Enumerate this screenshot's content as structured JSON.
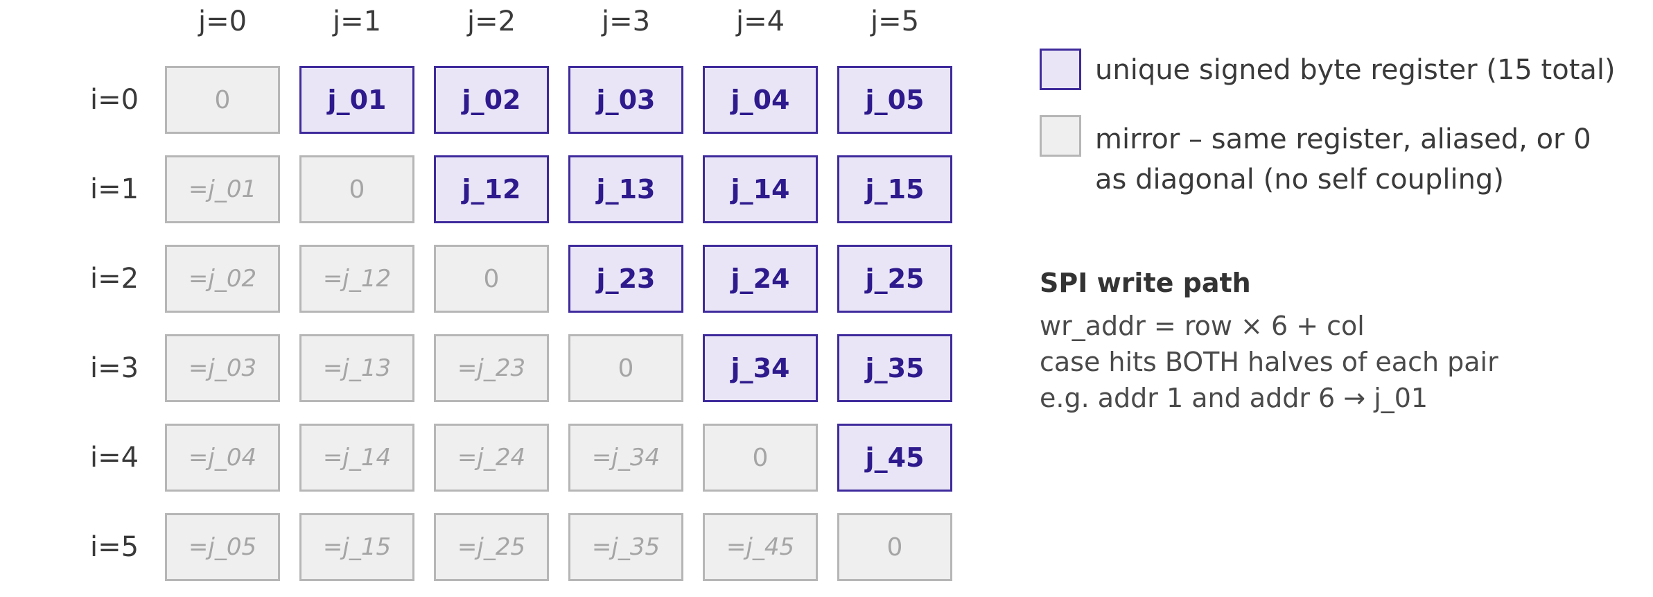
{
  "columns": [
    "j=0",
    "j=1",
    "j=2",
    "j=3",
    "j=4",
    "j=5"
  ],
  "rows": [
    "i=0",
    "i=1",
    "i=2",
    "i=3",
    "i=4",
    "i=5"
  ],
  "grid": [
    [
      {
        "t": "0",
        "k": "diag"
      },
      {
        "t": "j_01",
        "k": "unique"
      },
      {
        "t": "j_02",
        "k": "unique"
      },
      {
        "t": "j_03",
        "k": "unique"
      },
      {
        "t": "j_04",
        "k": "unique"
      },
      {
        "t": "j_05",
        "k": "unique"
      }
    ],
    [
      {
        "t": "=j_01",
        "k": "mirror"
      },
      {
        "t": "0",
        "k": "diag"
      },
      {
        "t": "j_12",
        "k": "unique"
      },
      {
        "t": "j_13",
        "k": "unique"
      },
      {
        "t": "j_14",
        "k": "unique"
      },
      {
        "t": "j_15",
        "k": "unique"
      }
    ],
    [
      {
        "t": "=j_02",
        "k": "mirror"
      },
      {
        "t": "=j_12",
        "k": "mirror"
      },
      {
        "t": "0",
        "k": "diag"
      },
      {
        "t": "j_23",
        "k": "unique"
      },
      {
        "t": "j_24",
        "k": "unique"
      },
      {
        "t": "j_25",
        "k": "unique"
      }
    ],
    [
      {
        "t": "=j_03",
        "k": "mirror"
      },
      {
        "t": "=j_13",
        "k": "mirror"
      },
      {
        "t": "=j_23",
        "k": "mirror"
      },
      {
        "t": "0",
        "k": "diag"
      },
      {
        "t": "j_34",
        "k": "unique"
      },
      {
        "t": "j_35",
        "k": "unique"
      }
    ],
    [
      {
        "t": "=j_04",
        "k": "mirror"
      },
      {
        "t": "=j_14",
        "k": "mirror"
      },
      {
        "t": "=j_24",
        "k": "mirror"
      },
      {
        "t": "=j_34",
        "k": "mirror"
      },
      {
        "t": "0",
        "k": "diag"
      },
      {
        "t": "j_45",
        "k": "unique"
      }
    ],
    [
      {
        "t": "=j_05",
        "k": "mirror"
      },
      {
        "t": "=j_15",
        "k": "mirror"
      },
      {
        "t": "=j_25",
        "k": "mirror"
      },
      {
        "t": "=j_35",
        "k": "mirror"
      },
      {
        "t": "=j_45",
        "k": "mirror"
      },
      {
        "t": "0",
        "k": "diag"
      }
    ]
  ],
  "legend": {
    "unique": "unique signed byte register (15 total)",
    "mirror_line1": "mirror – same register, aliased, or 0",
    "mirror_line2": "as diagonal (no self coupling)"
  },
  "spi": {
    "title": "SPI write path",
    "lines": [
      "wr_addr = row × 6 + col",
      "case hits BOTH halves of each pair",
      "e.g. addr 1 and addr 6 → j_01"
    ]
  },
  "colors": {
    "unique_fill": "#e9e5f6",
    "unique_border": "#3f2a9c",
    "unique_text": "#2e1a8c",
    "mirror_fill": "#efefef",
    "mirror_border": "#b6b6b6",
    "mirror_text": "#a5a5a5"
  }
}
